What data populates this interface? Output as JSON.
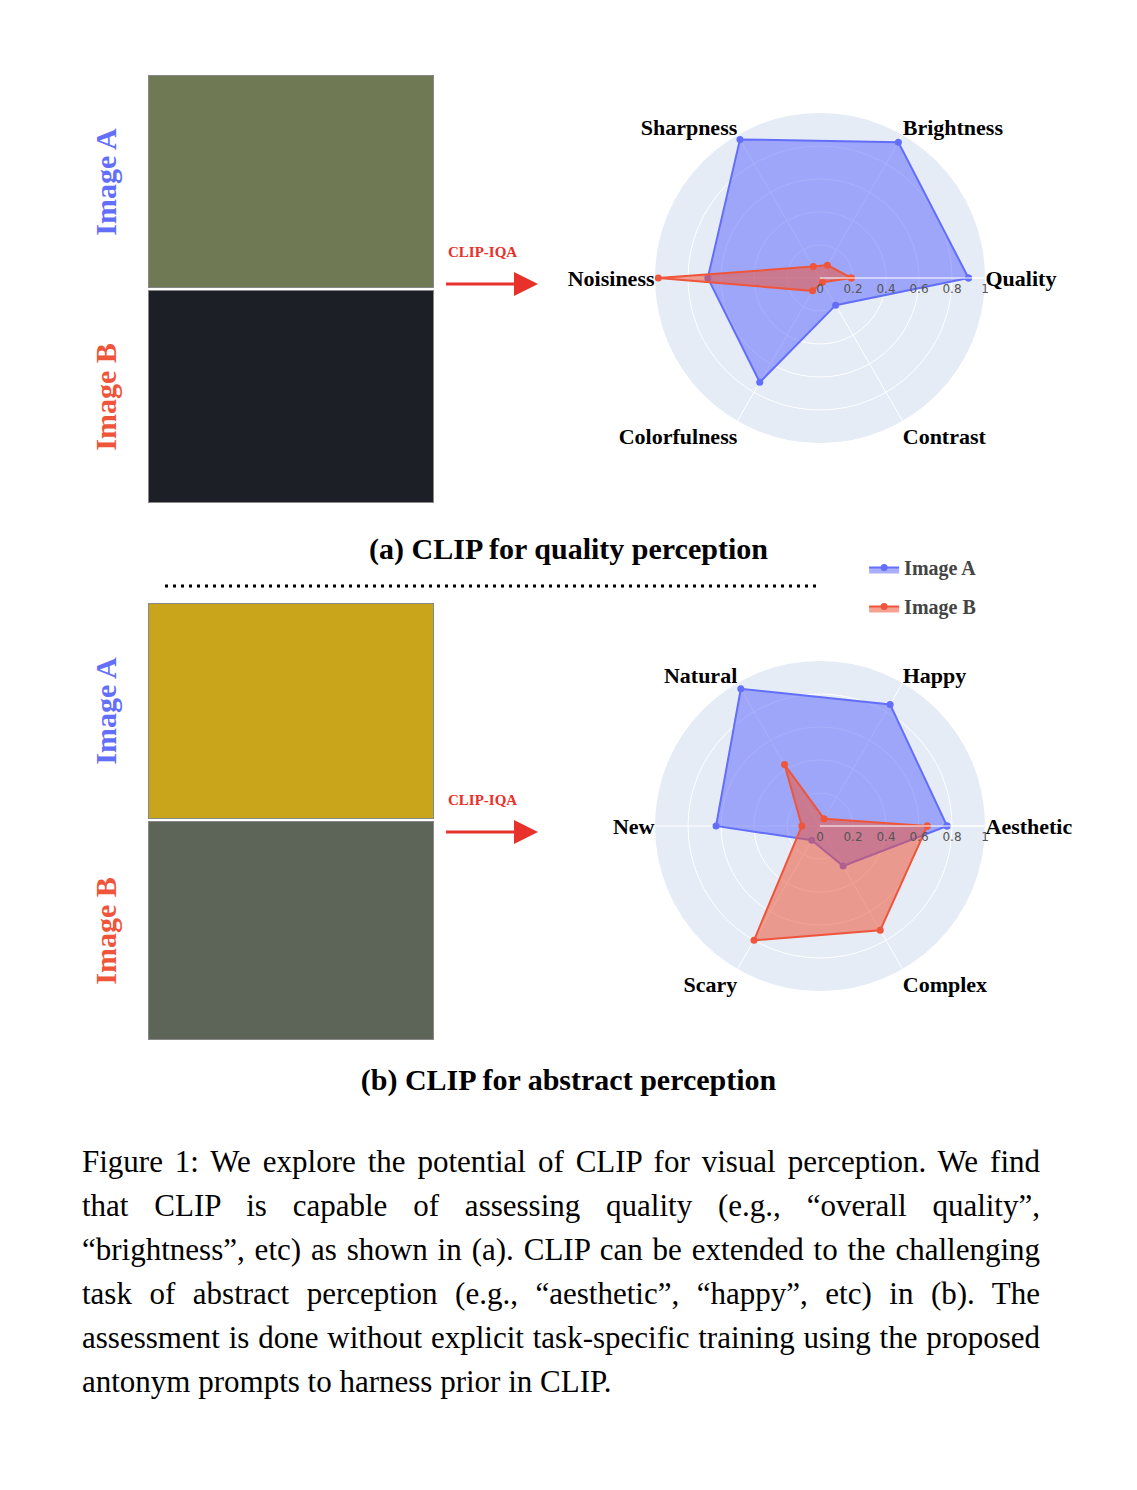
{
  "chart_data": [
    {
      "type": "radar",
      "title": "(a) CLIP for quality perception",
      "annotation": "CLIP-IQA",
      "categories": [
        "Quality",
        "Brightness",
        "Sharpness",
        "Noisiness",
        "Colorfulness",
        "Contrast"
      ],
      "series": [
        {
          "name": "Image A",
          "color": "#636efa",
          "values": [
            0.9,
            0.95,
            0.97,
            0.68,
            0.73,
            0.19
          ]
        },
        {
          "name": "Image B",
          "color": "#ef553b",
          "values": [
            0.19,
            0.09,
            0.08,
            0.98,
            0.09,
            0.03
          ]
        }
      ],
      "ylim": [
        0,
        1
      ],
      "yticks": [
        0,
        0.2,
        0.4,
        0.6,
        0.8,
        1
      ],
      "grid": true,
      "marker": "circle"
    },
    {
      "type": "radar",
      "title": "(b) CLIP for abstract perception",
      "annotation": "CLIP-IQA",
      "categories": [
        "Aesthetic",
        "Happy",
        "Natural",
        "New",
        "Scary",
        "Complex"
      ],
      "series": [
        {
          "name": "Image A",
          "color": "#636efa",
          "values": [
            0.77,
            0.85,
            0.96,
            0.63,
            0.1,
            0.28
          ]
        },
        {
          "name": "Image B",
          "color": "#ef553b",
          "values": [
            0.65,
            0.05,
            0.43,
            0.11,
            0.8,
            0.73
          ]
        }
      ],
      "ylim": [
        0,
        1
      ],
      "yticks": [
        0,
        0.2,
        0.4,
        0.6,
        0.8,
        1
      ],
      "grid": true,
      "marker": "circle",
      "legend": "top right"
    }
  ],
  "caption": "Figure 1: We explore the potential of CLIP for visual perception. We find that CLIP is capable of assessing quality (e.g., “overall quality”, “brightness”, etc) as shown in (a). CLIP can be extended to the challenging task of abstract perception (e.g., “aesthetic”, “happy”, etc) in (b). The assessment is done without explicit task-specific training using the proposed antonym prompts to harness prior in CLIP."
}
